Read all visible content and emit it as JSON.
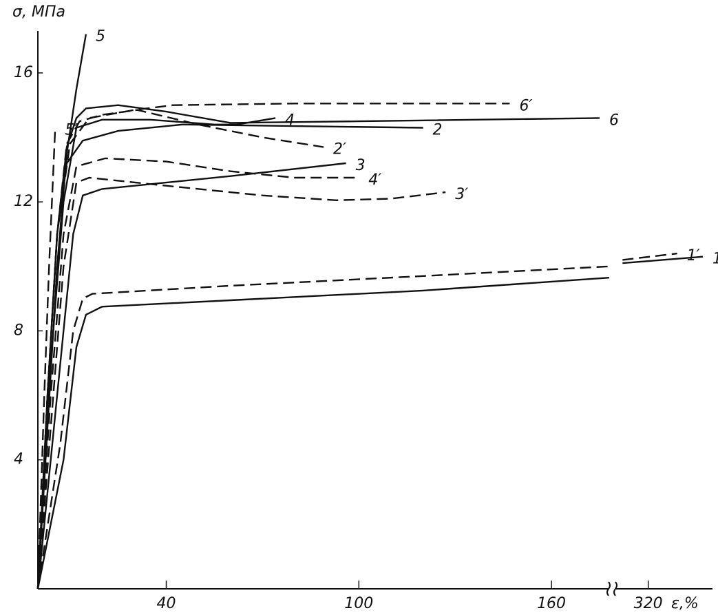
{
  "chart_data": {
    "type": "line",
    "xlabel": "ε,%",
    "ylabel": "σ, МПа",
    "xlim": [
      0,
      340
    ],
    "x_break": [
      178,
      310
    ],
    "ylim": [
      0,
      17.3
    ],
    "xticks": [
      40,
      100,
      160,
      320
    ],
    "yticks": [
      4,
      8,
      12,
      16
    ],
    "grid": false,
    "series": [
      {
        "name": "1",
        "color": "#111111",
        "dash": false,
        "x": [
          0,
          8,
          12,
          15,
          20,
          60,
          120,
          178,
          null,
          312,
          337
        ],
        "values": [
          0,
          4,
          7.5,
          8.5,
          8.75,
          8.95,
          9.25,
          9.65,
          null,
          10.1,
          10.3
        ]
      },
      {
        "name": "1′",
        "color": "#111111",
        "dash": true,
        "x": [
          0,
          7,
          11,
          14,
          17,
          60,
          120,
          178,
          null,
          312,
          329
        ],
        "values": [
          0,
          4.5,
          8,
          9,
          9.15,
          9.4,
          9.7,
          10.0,
          null,
          10.2,
          10.4
        ]
      },
      {
        "name": "2",
        "color": "#111111",
        "dash": false,
        "x": [
          0,
          3,
          6,
          9,
          14,
          25,
          45,
          80,
          120
        ],
        "values": [
          0,
          6,
          11,
          13.2,
          13.9,
          14.2,
          14.4,
          14.35,
          14.3
        ]
      },
      {
        "name": "2′",
        "color": "#111111",
        "dash": true,
        "x": [
          0,
          3,
          6,
          9,
          13,
          20,
          31,
          50,
          70,
          89
        ],
        "values": [
          0,
          6,
          11,
          13.8,
          14.5,
          14.7,
          14.85,
          14.4,
          14.0,
          13.7
        ]
      },
      {
        "name": "3",
        "color": "#111111",
        "dash": false,
        "x": [
          0,
          4,
          8,
          11,
          14,
          20,
          60,
          96
        ],
        "values": [
          0,
          4,
          8,
          11,
          12.2,
          12.4,
          12.8,
          13.2
        ]
      },
      {
        "name": "3′",
        "color": "#111111",
        "dash": true,
        "x": [
          0,
          4,
          8,
          12,
          16,
          40,
          70,
          93,
          110,
          127
        ],
        "values": [
          0,
          5,
          10,
          12.6,
          12.75,
          12.5,
          12.2,
          12.05,
          12.1,
          12.3
        ]
      },
      {
        "name": "4",
        "color": "#111111",
        "dash": false,
        "x": [
          0,
          4,
          8,
          12,
          20,
          35,
          55,
          62,
          74
        ],
        "values": [
          0,
          7,
          12,
          14.3,
          14.55,
          14.55,
          14.4,
          14.4,
          14.6
        ]
      },
      {
        "name": "4′",
        "color": "#111111",
        "dash": true,
        "x": [
          0,
          4,
          8,
          12,
          21,
          40,
          60,
          80,
          100
        ],
        "values": [
          0,
          6,
          11,
          13.1,
          13.35,
          13.25,
          12.95,
          12.75,
          12.75
        ]
      },
      {
        "name": "5",
        "color": "#111111",
        "dash": false,
        "x": [
          0,
          3,
          6,
          9,
          12,
          15
        ],
        "values": [
          0,
          5,
          10,
          13.5,
          15.5,
          17.2
        ]
      },
      {
        "name": "5′",
        "color": "#111111",
        "dash": true,
        "x": [
          0,
          2,
          3.5,
          5.4
        ],
        "values": [
          0,
          6,
          10,
          14.3
        ]
      },
      {
        "name": "6",
        "color": "#111111",
        "dash": false,
        "x": [
          0,
          3,
          6,
          9,
          12,
          15,
          25,
          40,
          60,
          100,
          175
        ],
        "values": [
          0,
          6,
          11,
          13.7,
          14.6,
          14.9,
          15.0,
          14.8,
          14.45,
          14.5,
          14.6
        ]
      },
      {
        "name": "6′",
        "color": "#111111",
        "dash": true,
        "x": [
          0,
          3,
          6,
          10,
          16,
          30,
          42,
          80,
          147
        ],
        "values": [
          0,
          6,
          11,
          13.8,
          14.6,
          14.85,
          15.0,
          15.05,
          15.05
        ]
      }
    ]
  }
}
